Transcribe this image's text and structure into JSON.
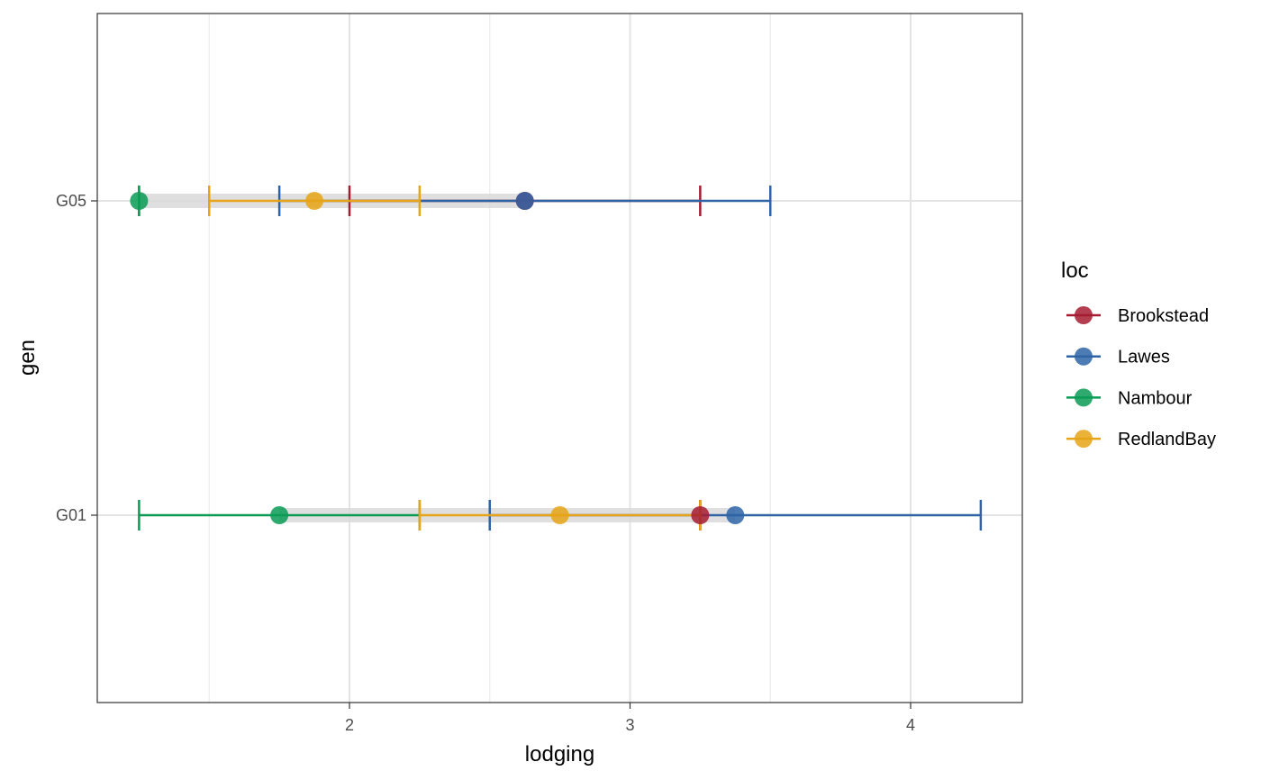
{
  "chart_data": {
    "type": "dot-errorbar",
    "xlabel": "lodging",
    "ylabel": "gen",
    "xlim": [
      1.1,
      4.4
    ],
    "x_ticks": [
      2,
      3,
      4
    ],
    "x_minor_ticks": [
      1.5,
      2.5,
      3.5
    ],
    "categories": [
      "G01",
      "G05"
    ],
    "grid": true,
    "legend": {
      "title": "loc",
      "placement": "right",
      "entries": [
        "Brookstead",
        "Lawes",
        "Nambour",
        "RedlandBay"
      ]
    },
    "series": [
      {
        "name": "Brookstead",
        "color": "#A51C30",
        "points": [
          {
            "gen": "G05",
            "x": 2.625,
            "low": 2.0,
            "high": 3.25
          },
          {
            "gen": "G01",
            "x": 3.25,
            "low": 3.25,
            "high": 3.25
          }
        ]
      },
      {
        "name": "Lawes",
        "color": "#2E64A6",
        "points": [
          {
            "gen": "G05",
            "x": 2.625,
            "low": 1.75,
            "high": 3.5
          },
          {
            "gen": "G01",
            "x": 3.375,
            "low": 2.5,
            "high": 4.25
          }
        ]
      },
      {
        "name": "Nambour",
        "color": "#0B9B55",
        "points": [
          {
            "gen": "G05",
            "x": 1.25,
            "low": 1.25,
            "high": 1.25
          },
          {
            "gen": "G01",
            "x": 1.75,
            "low": 1.25,
            "high": 2.25
          }
        ]
      },
      {
        "name": "RedlandBay",
        "color": "#E8A418",
        "points": [
          {
            "gen": "G05",
            "x": 1.875,
            "low": 1.5,
            "high": 2.25
          },
          {
            "gen": "G01",
            "x": 2.75,
            "low": 2.25,
            "high": 3.25
          }
        ]
      }
    ],
    "range_bands": [
      {
        "gen": "G05",
        "low": 1.25,
        "high": 2.625
      },
      {
        "gen": "G01",
        "low": 1.75,
        "high": 3.375
      }
    ]
  }
}
